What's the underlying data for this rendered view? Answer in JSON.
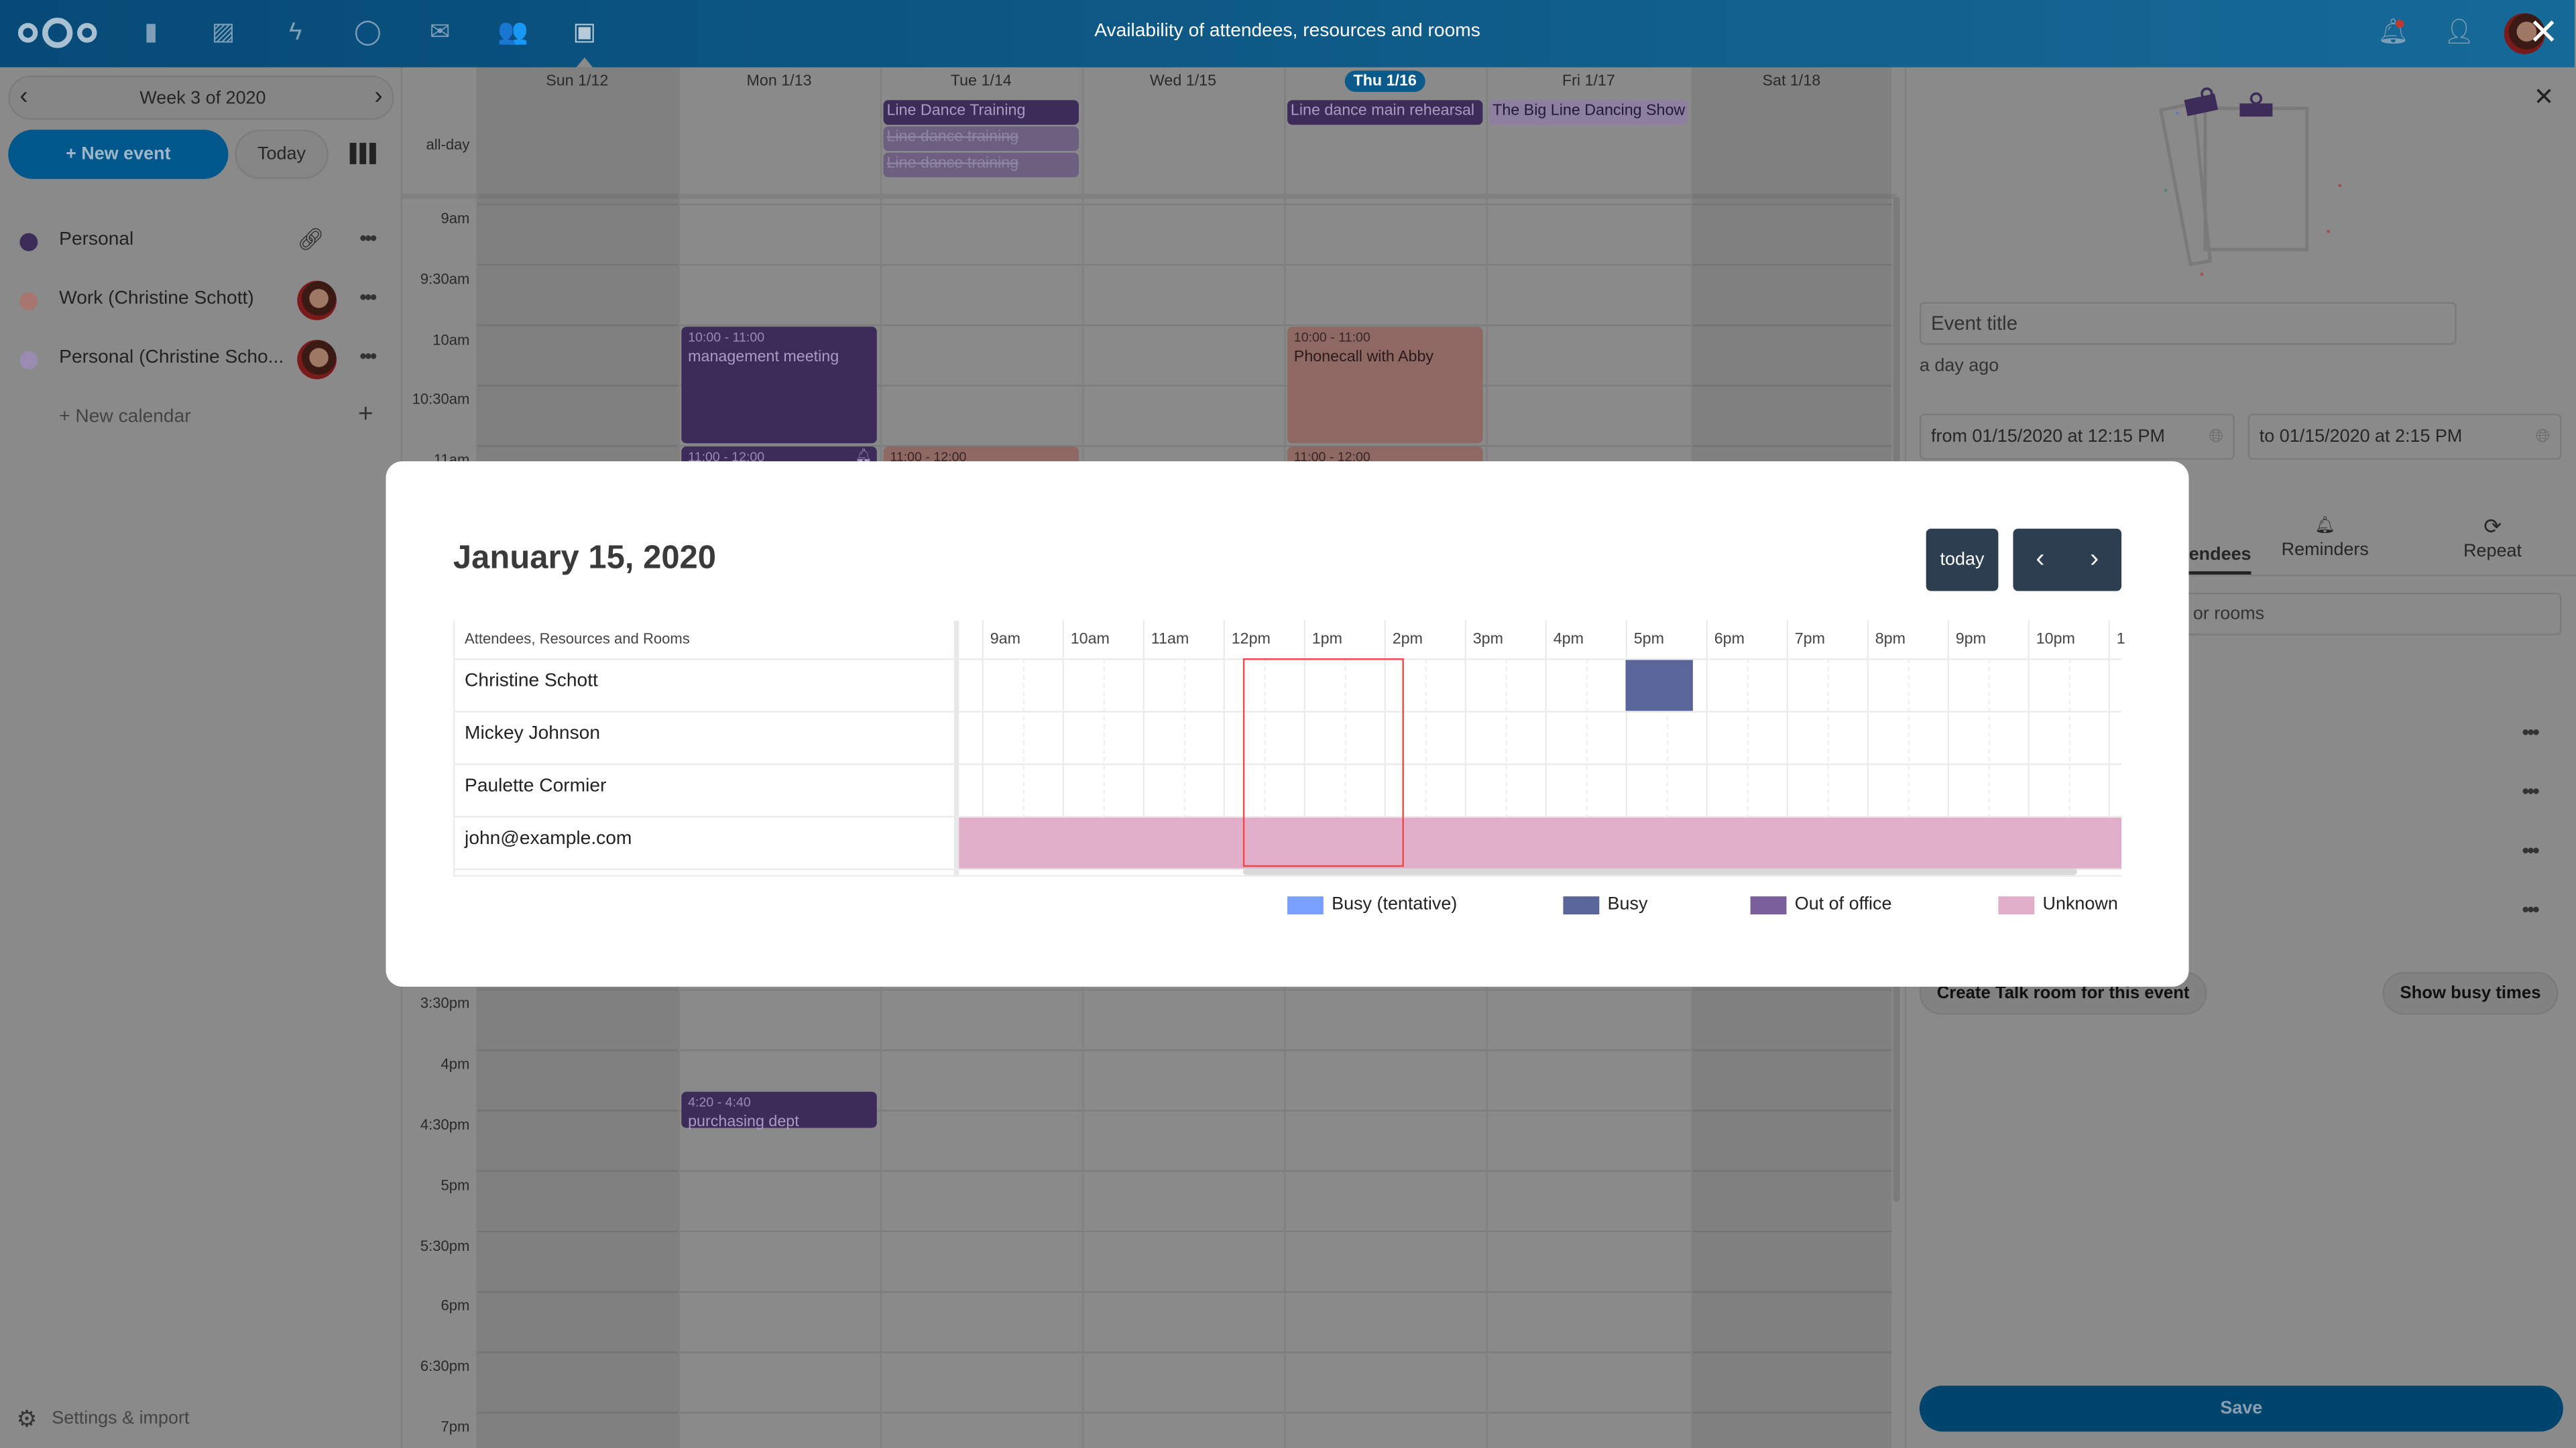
{
  "header": {
    "title": "Availability of attendees, resources and rooms",
    "apps": [
      "files-icon",
      "photos-icon",
      "activity-icon",
      "talk-icon",
      "mail-icon",
      "contacts-icon",
      "calendar-icon"
    ]
  },
  "sidebar": {
    "week_label": "Week 3 of 2020",
    "new_event": "+ New event",
    "today": "Today",
    "calendars": [
      {
        "label": "Personal",
        "color": "#3d2b5a"
      },
      {
        "label": "Work (Christine Schott)",
        "color": "#a8766f"
      },
      {
        "label": "Personal (Christine Scho...",
        "color": "#9a8cb0"
      }
    ],
    "new_calendar": "+ New calendar",
    "settings": "Settings & import"
  },
  "calendar": {
    "days": [
      "Sun 1/12",
      "Mon 1/13",
      "Tue 1/14",
      "Wed 1/15",
      "Thu 1/16",
      "Fri 1/17",
      "Sat 1/18"
    ],
    "today_index": 4,
    "allday_label": "all-day",
    "time_labels": [
      "9am",
      "9:30am",
      "10am",
      "10:30am",
      "11am",
      "3:30pm",
      "4pm",
      "4:30pm",
      "5pm",
      "5:30pm",
      "6pm",
      "6:30pm",
      "7pm"
    ],
    "allday_events": [
      {
        "day": 2,
        "title": "Line Dance Training",
        "style": "primary"
      },
      {
        "day": 2,
        "title": "Line dance training",
        "style": "cancelled"
      },
      {
        "day": 2,
        "title": "Line dance training",
        "style": "cancelled"
      },
      {
        "day": 4,
        "title": "Line dance main rehearsal",
        "style": "primary"
      },
      {
        "day": 5,
        "title": "The Big Line Dancing Show",
        "style": "light"
      }
    ],
    "events": [
      {
        "day": 1,
        "time": "10:00 - 11:00",
        "title": "management meeting",
        "start": 10,
        "end": 11,
        "color": "#3d2b5a"
      },
      {
        "day": 1,
        "time": "11:00 - 12:00",
        "title": "",
        "start": 11,
        "end": 12,
        "color": "#3d2b5a",
        "bell": true
      },
      {
        "day": 2,
        "time": "11:00 - 12:00",
        "title": "",
        "start": 11,
        "end": 12,
        "color": "#8e6863"
      },
      {
        "day": 4,
        "time": "10:00 - 11:00",
        "title": "Phonecall with Abby",
        "start": 10,
        "end": 11,
        "color": "#8e6863"
      },
      {
        "day": 4,
        "time": "11:00 - 12:00",
        "title": "",
        "start": 11,
        "end": 12,
        "color": "#8e6863"
      },
      {
        "day": 1,
        "time": "4:20 - 4:40",
        "title": "purchasing dept",
        "start": 16.333,
        "end": 16.667,
        "color": "#3d2b5a"
      }
    ]
  },
  "panel": {
    "title_placeholder": "Event title",
    "modified": "a day ago",
    "from": "from 01/15/2020 at 12:15 PM",
    "to": "to 01/15/2020 at 2:15 PM",
    "tabs": [
      "Attendees",
      "Reminders",
      "Repeat"
    ],
    "search_placeholder": "Search for attendees, resources or rooms",
    "create_talk": "Create Talk room for this event",
    "show_busy": "Show busy times",
    "save": "Save"
  },
  "modal": {
    "title": "January 15, 2020",
    "today": "today",
    "column_header": "Attendees, Resources and Rooms",
    "hours": [
      "9am",
      "10am",
      "11am",
      "12pm",
      "1pm",
      "2pm",
      "3pm",
      "4pm",
      "5pm",
      "6pm",
      "7pm",
      "8pm",
      "9pm",
      "10pm",
      "1"
    ],
    "attendees": [
      "Christine Schott",
      "Mickey Johnson",
      "Paulette Cormier",
      "john@example.com"
    ],
    "selection": {
      "start": "12:15",
      "end": "14:15"
    },
    "busy_blocks": [
      {
        "attendee": 0,
        "start": "17:00",
        "end": "17:50",
        "status": "busy"
      },
      {
        "attendee": 3,
        "start": "08:43",
        "end": "23:15",
        "status": "unknown"
      }
    ],
    "legend": [
      {
        "label": "Busy (tentative)",
        "color": "#7aa0ff"
      },
      {
        "label": "Busy",
        "color": "#5a6699"
      },
      {
        "label": "Out of office",
        "color": "#7b5e9c"
      },
      {
        "label": "Unknown",
        "color": "#e2afca"
      }
    ]
  }
}
